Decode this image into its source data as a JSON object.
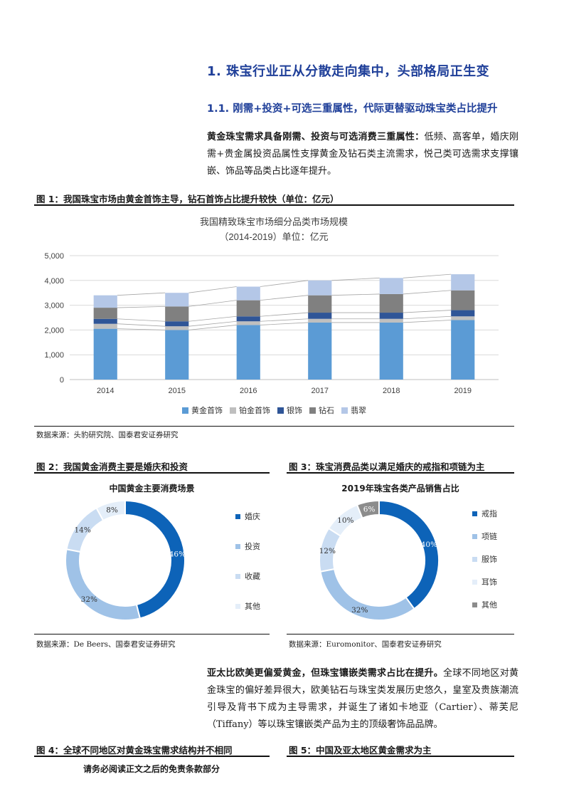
{
  "heading1": "1.  珠宝行业正从分散走向集中，头部格局正生变",
  "heading2": "1.1.   刚需+投资+可选三重属性，代际更替驱动珠宝类占比提升",
  "para1": {
    "bold": "黄金珠宝需求具备刚需、投资与可选消费三重属性：",
    "text": "低频、高客单，婚庆刚需+贵金属投资品属性支撑黄金及钻石类主流需求，悦己类可选需求支撑镶嵌、饰品等品类占比逐年提升。"
  },
  "fig1": {
    "title": "图 1：我国珠宝市场由黄金首饰主导，钻石首饰占比提升较快（单位：亿元）",
    "source": "数据来源：头豹研究院、国泰君安证券研究"
  },
  "fig2": {
    "title": "图 2：我国黄金消费主要是婚庆和投资",
    "source": "数据来源：De Beers、国泰君安证券研究"
  },
  "fig3": {
    "title": "图 3：珠宝消费品类以满足婚庆的戒指和项链为主",
    "source": "数据来源：Euromonitor、国泰君安证券研究"
  },
  "para2": {
    "bold": "亚太比欧美更偏爱黄金，但珠宝镶嵌类需求占比在提升。",
    "text": "全球不同地区对黄金珠宝的偏好差异很大，欧美钻石与珠宝类发展历史悠久，皇室及贵族潮流引导及背书下成为主导需求，并诞生了诸如卡地亚（Cartier）、蒂芙尼（Tiffany）等以珠宝镶嵌类产品为主的顶级奢饰品品牌。"
  },
  "fig4": {
    "title": "图 4：全球不同地区对黄金珠宝需求结构并不相同"
  },
  "fig5": {
    "title": "图 5：中国及亚太地区黄金需求为主"
  },
  "footer": "请务必阅读正文之后的免责条款部分",
  "colors": {
    "heading": "#1f3f99",
    "gold": "#5b9bd5",
    "platinum": "#bfbfbf",
    "silver": "#2f5597",
    "diamond": "#808080",
    "jade": "#b4c7e7",
    "donut_dark": "#0d63b8",
    "donut_mid": "#9fc2e7",
    "donut_light": "#c9dcf2",
    "donut_pale": "#e4eef9",
    "donut_grey": "#8c8c8c"
  },
  "chart_data": [
    {
      "type": "bar",
      "stacked": true,
      "title": "我国精致珠宝市场细分品类市场规模",
      "subtitle": "（2014-2019）单位：亿元",
      "categories": [
        "2014",
        "2015",
        "2016",
        "2017",
        "2018",
        "2019"
      ],
      "ylim": [
        0,
        5000
      ],
      "yticks": [
        "0",
        "1,000",
        "2,000",
        "3,000",
        "4,000",
        "5,000"
      ],
      "grid": true,
      "legend_position": "bottom",
      "series": [
        {
          "name": "黄金首饰",
          "color": "#5b9bd5",
          "values": [
            2050,
            2000,
            2200,
            2300,
            2300,
            2400
          ]
        },
        {
          "name": "铂金首饰",
          "color": "#bfbfbf",
          "values": [
            200,
            150,
            150,
            150,
            150,
            150
          ]
        },
        {
          "name": "银饰",
          "color": "#2f5597",
          "values": [
            200,
            200,
            200,
            250,
            250,
            250
          ]
        },
        {
          "name": "钻石",
          "color": "#808080",
          "values": [
            450,
            600,
            650,
            700,
            750,
            800
          ]
        },
        {
          "name": "翡翠",
          "color": "#b4c7e7",
          "values": [
            500,
            550,
            550,
            600,
            650,
            650
          ]
        }
      ]
    },
    {
      "type": "pie",
      "donut": true,
      "title": "中国黄金主要消费场景",
      "legend_position": "right",
      "slices": [
        {
          "name": "婚庆",
          "value": 46,
          "label": "46%",
          "color": "#0d63b8"
        },
        {
          "name": "投资",
          "value": 32,
          "label": "32%",
          "color": "#9fc2e7"
        },
        {
          "name": "收藏",
          "value": 14,
          "label": "14%",
          "color": "#c9dcf2"
        },
        {
          "name": "其他",
          "value": 8,
          "label": "8%",
          "color": "#e4eef9"
        }
      ]
    },
    {
      "type": "pie",
      "donut": true,
      "title": "2019年珠宝各类产品销售占比",
      "legend_position": "right",
      "slices": [
        {
          "name": "戒指",
          "value": 40,
          "label": "40%",
          "color": "#0d63b8"
        },
        {
          "name": "项链",
          "value": 32,
          "label": "32%",
          "color": "#9fc2e7"
        },
        {
          "name": "服饰",
          "value": 12,
          "label": "12%",
          "color": "#c9dcf2"
        },
        {
          "name": "耳饰",
          "value": 10,
          "label": "10%",
          "color": "#e4eef9"
        },
        {
          "name": "其他",
          "value": 6,
          "label": "6%",
          "color": "#8c8c8c"
        }
      ]
    }
  ]
}
